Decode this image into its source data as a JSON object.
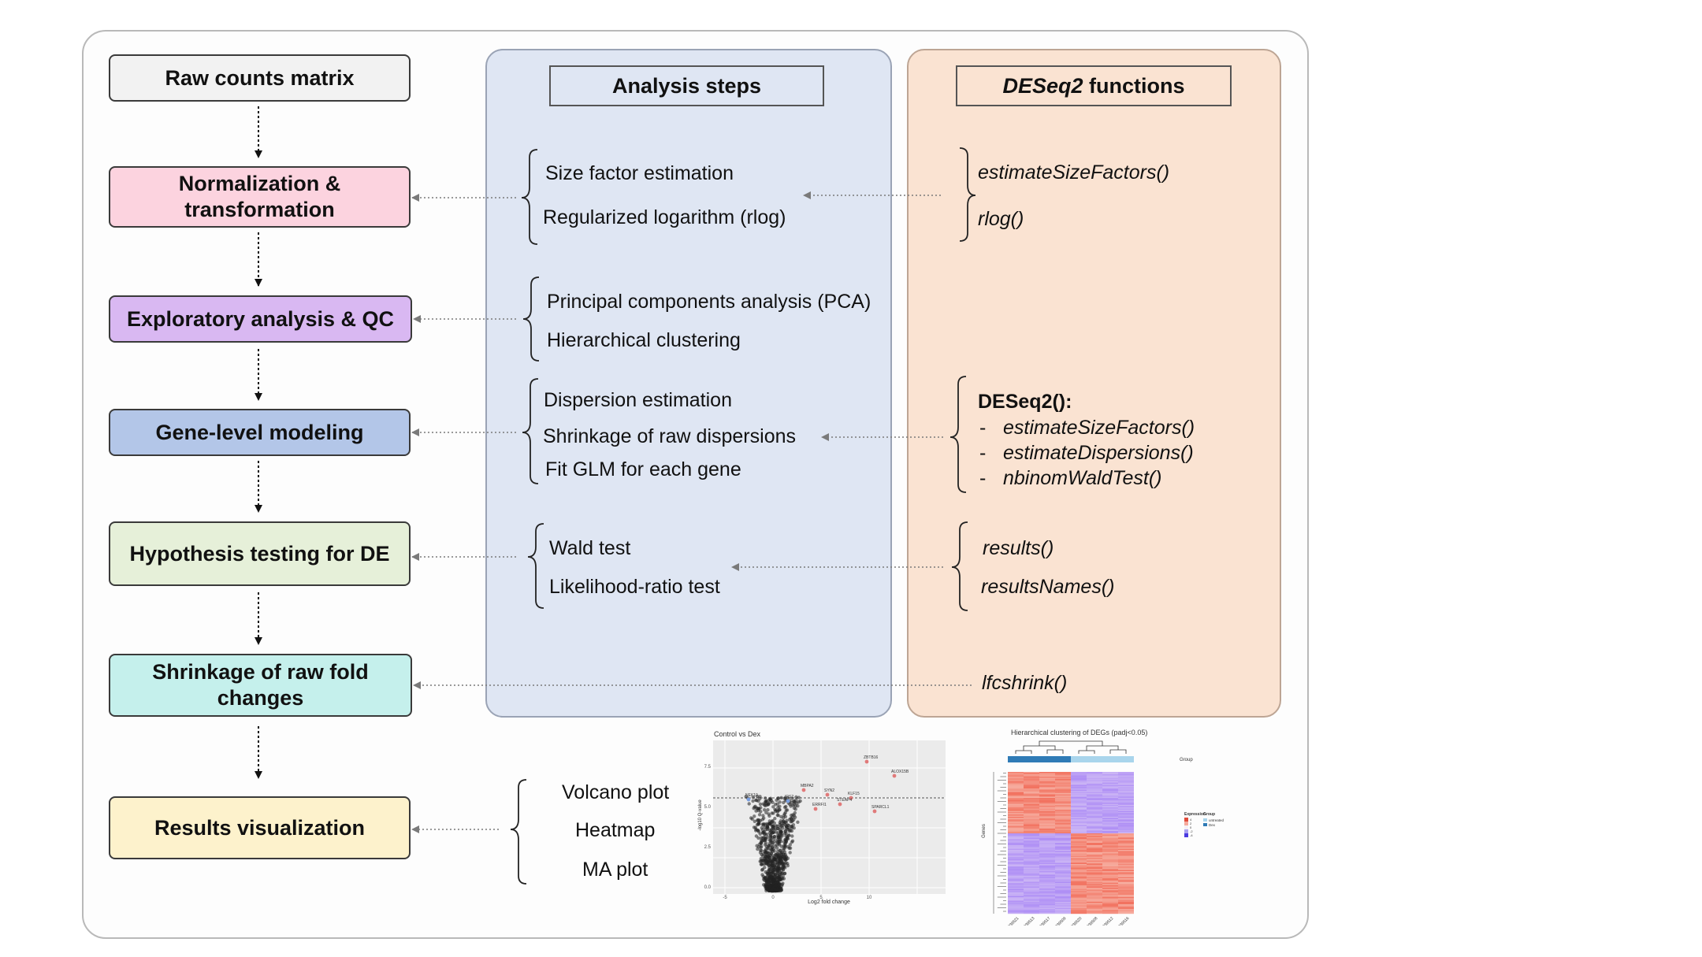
{
  "columns": {
    "analysis_title": "Analysis steps",
    "functions_title_italic": "DESeq2",
    "functions_title_rest": " functions"
  },
  "workflow": [
    {
      "line1": "Raw counts matrix",
      "line2": "",
      "color": "#f2f2f2"
    },
    {
      "line1": "Normalization &",
      "line2": "transformation",
      "color": "#fcd3df"
    },
    {
      "line1": "Exploratory analysis & QC",
      "line2": "",
      "color": "#d9b8f2"
    },
    {
      "line1": "Gene-level modeling",
      "line2": "",
      "color": "#b3c6e8"
    },
    {
      "line1": "Hypothesis testing for DE",
      "line2": "",
      "color": "#e6f0d9"
    },
    {
      "line1": "Shrinkage of raw fold",
      "line2": "changes",
      "color": "#c5f0ec"
    },
    {
      "line1": "Results visualization",
      "line2": "",
      "color": "#fdf2cc"
    }
  ],
  "analysis_steps": {
    "norm": [
      "Size factor estimation",
      "Regularized logarithm (rlog)"
    ],
    "qc": [
      "Principal components analysis (PCA)",
      "Hierarchical clustering"
    ],
    "model": [
      "Dispersion estimation",
      "Shrinkage of raw dispersions",
      "Fit GLM for each gene"
    ],
    "test": [
      "Wald test",
      "Likelihood-ratio test"
    ],
    "viz": [
      "Volcano plot",
      "Heatmap",
      "MA plot"
    ]
  },
  "functions": {
    "norm": [
      "estimateSizeFactors()",
      "rlog()"
    ],
    "model_header": "DESeq2():",
    "model_items": [
      "estimateSizeFactors()",
      "estimateDispersions()",
      "nbinomWaldTest()"
    ],
    "bullet": "-",
    "test": [
      "results()",
      "resultsNames()"
    ],
    "shrink": "lfcshrink()"
  },
  "volcano": {
    "title": "Control vs Dex",
    "xlabel": "Log2 fold change",
    "ylabel": "-log10 Q-value",
    "y_ticks": [
      "7.5",
      "5.0",
      "2.5",
      "0.0"
    ],
    "x_ticks": [
      "-5",
      "0",
      "5",
      "10"
    ],
    "gene_labels": [
      "ZBTB16",
      "ALOX15B",
      "NEK10",
      "MBPA2",
      "SYN2",
      "KLF15",
      "IRS2",
      "STEAP4",
      "ERRFI1",
      "SPARCL1"
    ]
  },
  "heatmap": {
    "title": "Hierarchical clustering of DEGs (padj<0.05)",
    "group_label": "Group",
    "y_label": "Genes",
    "legend_expression": "Expression",
    "legend_group": "Group",
    "legend_groups": [
      "untreated",
      "Dex"
    ],
    "legend_values": [
      "4",
      "2",
      "0",
      "-2",
      "-4"
    ],
    "samples": [
      "SRR1039521",
      "SRR1039513",
      "SRR1039517",
      "SRR1039509",
      "SRR1039520",
      "SRR1039508",
      "SRR1039512",
      "SRR1039516"
    ]
  }
}
